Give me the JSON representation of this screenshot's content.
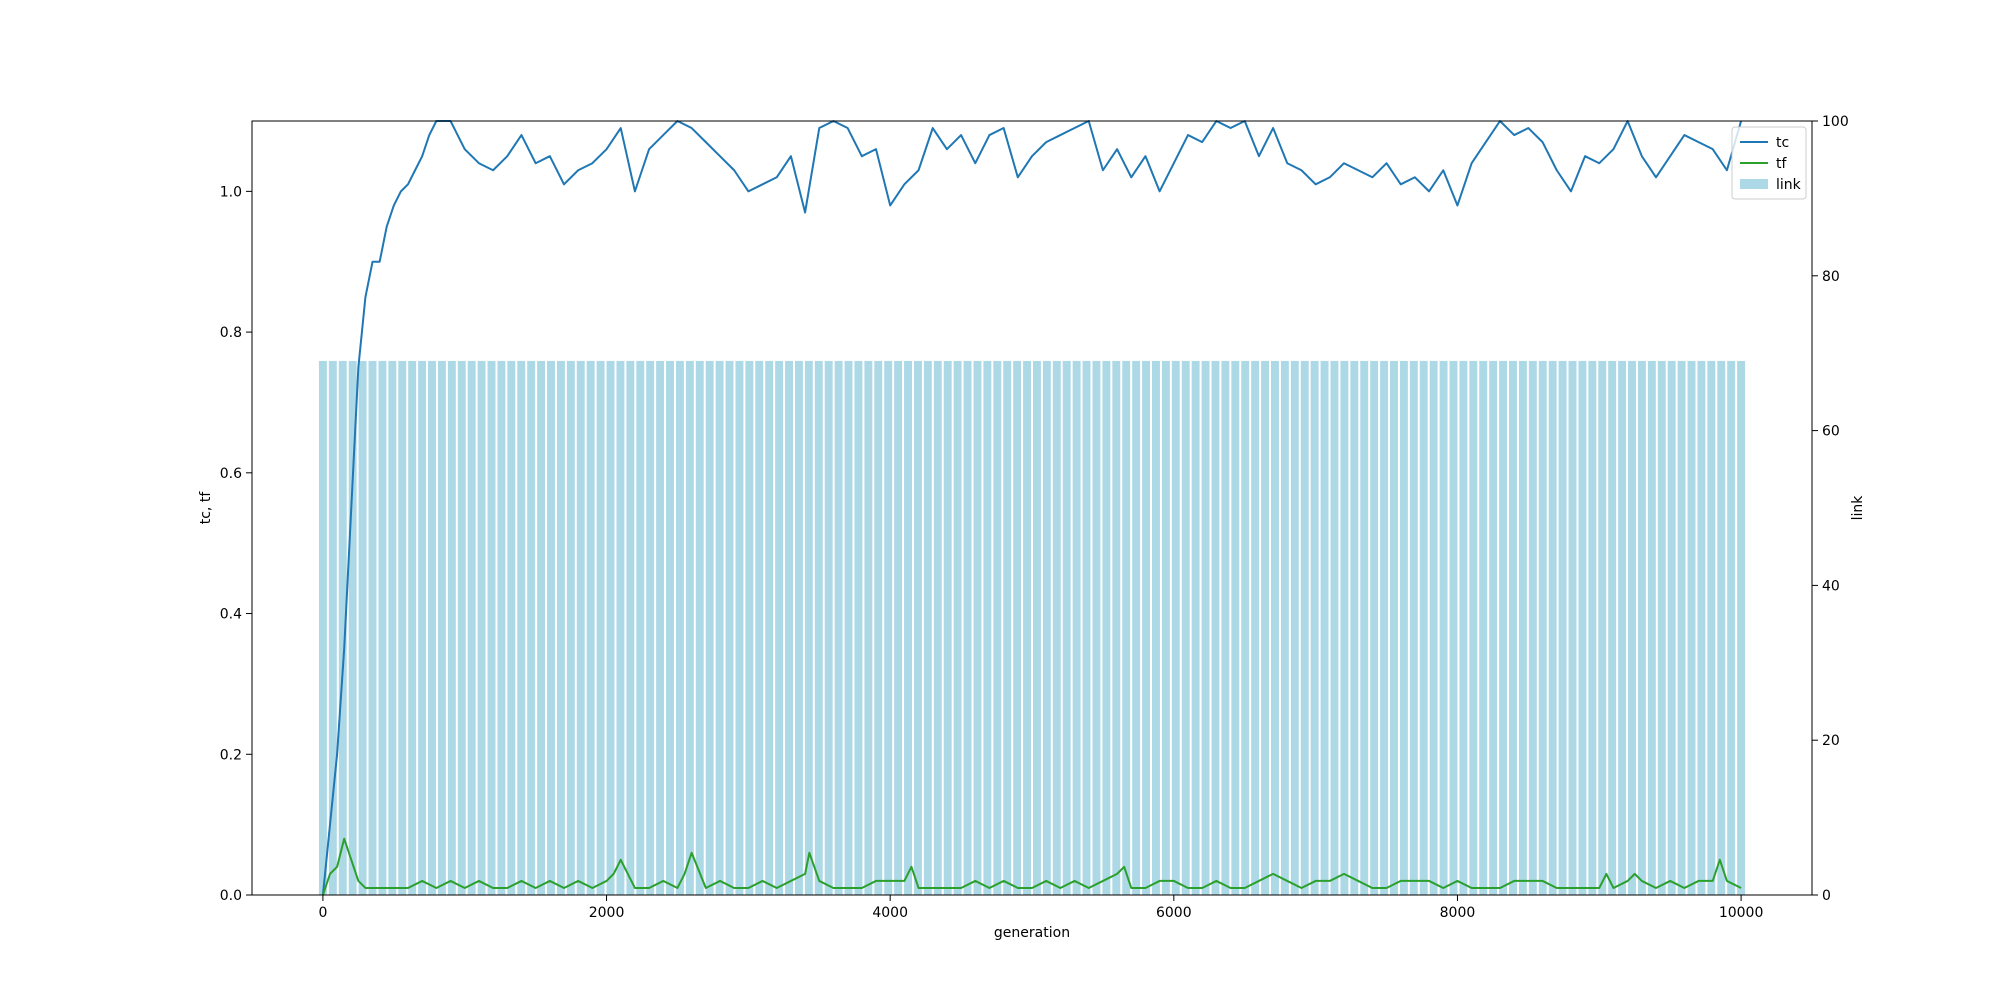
{
  "chart_data": {
    "type": "line",
    "title": "",
    "xlabel": "generation",
    "ylabel_left": "tc, tf",
    "ylabel_right": "link",
    "xlim": [
      -500,
      10500
    ],
    "ylim_left": [
      0,
      1.1
    ],
    "ylim_right": [
      0,
      100
    ],
    "x_ticks": [
      0,
      2000,
      4000,
      6000,
      8000,
      10000
    ],
    "x_tick_labels": [
      "0",
      "2000",
      "4000",
      "6000",
      "8000",
      "10000"
    ],
    "y_left_ticks": [
      0.0,
      0.2,
      0.4,
      0.6,
      0.8,
      1.0
    ],
    "y_left_tick_labels": [
      "0.0",
      "0.2",
      "0.4",
      "0.6",
      "0.8",
      "1.0"
    ],
    "y_right_ticks": [
      0,
      20,
      40,
      60,
      80,
      100
    ],
    "y_right_tick_labels": [
      "0",
      "20",
      "40",
      "60",
      "80",
      "100"
    ],
    "grid": false,
    "legend_position": "top-right",
    "legend": [
      {
        "label": "tc",
        "kind": "line",
        "color": "#1f77b4"
      },
      {
        "label": "tf",
        "kind": "line",
        "color": "#2ca02c"
      },
      {
        "label": "link",
        "kind": "bar",
        "color": "#add8e6"
      }
    ],
    "series": [
      {
        "name": "tc",
        "axis": "left",
        "color": "#1f77b4",
        "x": [
          0,
          50,
          100,
          150,
          200,
          250,
          300,
          350,
          400,
          450,
          500,
          550,
          600,
          650,
          700,
          750,
          800,
          850,
          900,
          1000,
          1100,
          1200,
          1300,
          1400,
          1500,
          1600,
          1700,
          1800,
          1900,
          2000,
          2100,
          2200,
          2300,
          2400,
          2500,
          2600,
          2700,
          2800,
          2900,
          3000,
          3100,
          3200,
          3300,
          3400,
          3500,
          3600,
          3700,
          3800,
          3900,
          4000,
          4100,
          4200,
          4300,
          4400,
          4500,
          4600,
          4700,
          4800,
          4900,
          5000,
          5100,
          5200,
          5300,
          5400,
          5500,
          5600,
          5700,
          5800,
          5900,
          6000,
          6100,
          6200,
          6300,
          6400,
          6500,
          6600,
          6700,
          6800,
          6900,
          7000,
          7100,
          7200,
          7300,
          7400,
          7500,
          7600,
          7700,
          7800,
          7900,
          8000,
          8100,
          8200,
          8300,
          8400,
          8500,
          8600,
          8700,
          8800,
          8900,
          9000,
          9100,
          9200,
          9300,
          9400,
          9500,
          9600,
          9700,
          9800,
          9900,
          10000
        ],
        "y": [
          0.0,
          0.1,
          0.2,
          0.35,
          0.55,
          0.75,
          0.85,
          0.9,
          0.9,
          0.95,
          0.98,
          1.0,
          1.01,
          1.03,
          1.05,
          1.08,
          1.1,
          1.1,
          1.1,
          1.06,
          1.04,
          1.03,
          1.05,
          1.08,
          1.04,
          1.05,
          1.01,
          1.03,
          1.04,
          1.06,
          1.09,
          1.0,
          1.06,
          1.08,
          1.1,
          1.09,
          1.07,
          1.05,
          1.03,
          1.0,
          1.01,
          1.02,
          1.05,
          0.97,
          1.09,
          1.1,
          1.09,
          1.05,
          1.06,
          0.98,
          1.01,
          1.03,
          1.09,
          1.06,
          1.08,
          1.04,
          1.08,
          1.09,
          1.02,
          1.05,
          1.07,
          1.08,
          1.09,
          1.1,
          1.03,
          1.06,
          1.02,
          1.05,
          1.0,
          1.04,
          1.08,
          1.07,
          1.1,
          1.09,
          1.1,
          1.05,
          1.09,
          1.04,
          1.03,
          1.01,
          1.02,
          1.04,
          1.03,
          1.02,
          1.04,
          1.01,
          1.02,
          1.0,
          1.03,
          0.98,
          1.04,
          1.07,
          1.1,
          1.08,
          1.09,
          1.07,
          1.03,
          1.0,
          1.05,
          1.04,
          1.06,
          1.1,
          1.05,
          1.02,
          1.05,
          1.08,
          1.07,
          1.06,
          1.03,
          1.1
        ]
      },
      {
        "name": "tf",
        "axis": "left",
        "color": "#2ca02c",
        "x": [
          0,
          50,
          100,
          150,
          200,
          250,
          300,
          400,
          500,
          600,
          700,
          800,
          900,
          1000,
          1100,
          1200,
          1300,
          1400,
          1500,
          1600,
          1700,
          1800,
          1900,
          2000,
          2050,
          2100,
          2200,
          2300,
          2400,
          2500,
          2550,
          2600,
          2700,
          2800,
          2900,
          3000,
          3100,
          3200,
          3300,
          3400,
          3430,
          3500,
          3600,
          3700,
          3800,
          3900,
          4000,
          4100,
          4150,
          4200,
          4300,
          4400,
          4500,
          4600,
          4700,
          4800,
          4900,
          5000,
          5100,
          5200,
          5300,
          5400,
          5500,
          5600,
          5650,
          5700,
          5800,
          5900,
          6000,
          6100,
          6200,
          6300,
          6400,
          6500,
          6600,
          6700,
          6800,
          6900,
          7000,
          7100,
          7200,
          7300,
          7400,
          7500,
          7600,
          7700,
          7800,
          7900,
          8000,
          8100,
          8200,
          8300,
          8400,
          8500,
          8600,
          8700,
          8800,
          8900,
          9000,
          9050,
          9100,
          9200,
          9250,
          9300,
          9400,
          9500,
          9600,
          9700,
          9800,
          9850,
          9900,
          10000
        ],
        "y": [
          0.0,
          0.03,
          0.04,
          0.08,
          0.05,
          0.02,
          0.01,
          0.01,
          0.01,
          0.01,
          0.02,
          0.01,
          0.02,
          0.01,
          0.02,
          0.01,
          0.01,
          0.02,
          0.01,
          0.02,
          0.01,
          0.02,
          0.01,
          0.02,
          0.03,
          0.05,
          0.01,
          0.01,
          0.02,
          0.01,
          0.03,
          0.06,
          0.01,
          0.02,
          0.01,
          0.01,
          0.02,
          0.01,
          0.02,
          0.03,
          0.06,
          0.02,
          0.01,
          0.01,
          0.01,
          0.02,
          0.02,
          0.02,
          0.04,
          0.01,
          0.01,
          0.01,
          0.01,
          0.02,
          0.01,
          0.02,
          0.01,
          0.01,
          0.02,
          0.01,
          0.02,
          0.01,
          0.02,
          0.03,
          0.04,
          0.01,
          0.01,
          0.02,
          0.02,
          0.01,
          0.01,
          0.02,
          0.01,
          0.01,
          0.02,
          0.03,
          0.02,
          0.01,
          0.02,
          0.02,
          0.03,
          0.02,
          0.01,
          0.01,
          0.02,
          0.02,
          0.02,
          0.01,
          0.02,
          0.01,
          0.01,
          0.01,
          0.02,
          0.02,
          0.02,
          0.01,
          0.01,
          0.01,
          0.01,
          0.03,
          0.01,
          0.02,
          0.03,
          0.02,
          0.01,
          0.02,
          0.01,
          0.02,
          0.02,
          0.05,
          0.02,
          0.01
        ]
      },
      {
        "name": "link",
        "axis": "right",
        "type": "bar",
        "color": "#add8e6",
        "bar_count": 144,
        "x_start": 0,
        "x_end": 10000,
        "value": 69
      }
    ]
  }
}
